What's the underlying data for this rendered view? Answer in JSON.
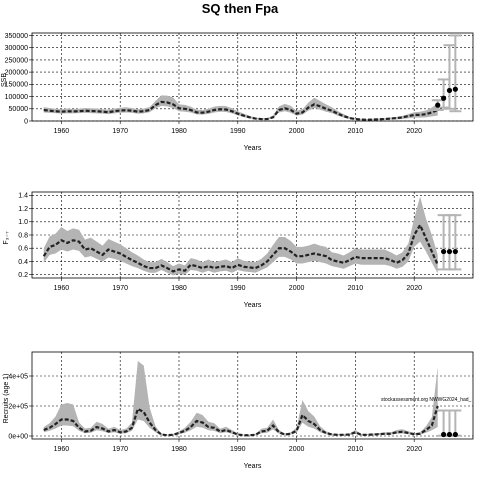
{
  "figure": {
    "title": "SQ then Fpa"
  },
  "chart_data": [
    {
      "type": "line",
      "panel": "ssb",
      "title": "",
      "xlabel": "Years",
      "ylabel": "SSB",
      "xlim": [
        1955,
        2030
      ],
      "ylim": [
        0,
        360000
      ],
      "grid": true,
      "x_ticks": [
        1960,
        1970,
        1980,
        1990,
        2000,
        2010,
        2020
      ],
      "x_tick_labels": [
        "1960",
        "1970",
        "1980",
        "1990",
        "2000",
        "2010",
        "2020"
      ],
      "y_ticks": [
        0,
        50000,
        100000,
        150000,
        200000,
        250000,
        300000,
        350000
      ],
      "y_tick_labels": [
        "0",
        "50000",
        "100000",
        "150000",
        "200000",
        "250000",
        "300000",
        "350000"
      ],
      "series": [
        {
          "role": "estimate",
          "x": [
            1957,
            1958,
            1959,
            1960,
            1961,
            1962,
            1963,
            1964,
            1965,
            1966,
            1967,
            1968,
            1969,
            1970,
            1971,
            1972,
            1973,
            1974,
            1975,
            1976,
            1977,
            1978,
            1979,
            1980,
            1981,
            1982,
            1983,
            1984,
            1985,
            1986,
            1987,
            1988,
            1989,
            1990,
            1991,
            1992,
            1993,
            1994,
            1995,
            1996,
            1997,
            1998,
            1999,
            2000,
            2001,
            2002,
            2003,
            2004,
            2005,
            2006,
            2007,
            2008,
            2009,
            2010,
            2011,
            2012,
            2013,
            2014,
            2015,
            2016,
            2017,
            2018,
            2019,
            2020,
            2021,
            2022,
            2023,
            2024
          ],
          "values": [
            45000,
            42000,
            40000,
            38000,
            40000,
            39000,
            40000,
            42000,
            41000,
            40000,
            38000,
            36000,
            40000,
            43000,
            44000,
            42000,
            38000,
            40000,
            45000,
            65000,
            78000,
            76000,
            68000,
            52000,
            50000,
            45000,
            35000,
            34000,
            38000,
            45000,
            48000,
            47000,
            40000,
            30000,
            22000,
            15000,
            10000,
            8000,
            8000,
            15000,
            45000,
            52000,
            45000,
            30000,
            35000,
            55000,
            68000,
            60000,
            50000,
            42000,
            30000,
            20000,
            12000,
            8000,
            6000,
            5000,
            6000,
            7000,
            8000,
            10000,
            12000,
            15000,
            20000,
            25000,
            25000,
            28000,
            35000,
            45000
          ],
          "lower": [
            35000,
            33000,
            32000,
            30000,
            31000,
            31000,
            32000,
            33000,
            32000,
            31000,
            30000,
            28000,
            31000,
            34000,
            35000,
            33000,
            30000,
            31000,
            36000,
            52000,
            62000,
            60000,
            53000,
            40000,
            38000,
            35000,
            27000,
            26000,
            29000,
            35000,
            38000,
            37000,
            31000,
            23000,
            16000,
            11000,
            7000,
            5500,
            5500,
            11000,
            35000,
            40000,
            34000,
            22000,
            26000,
            42000,
            53000,
            46000,
            38000,
            32000,
            22000,
            14000,
            8000,
            5500,
            4000,
            3000,
            3500,
            4000,
            4500,
            5500,
            6500,
            8000,
            11000,
            14000,
            14000,
            15000,
            19000,
            22000
          ],
          "upper": [
            57000,
            53000,
            50000,
            48000,
            51000,
            49000,
            50000,
            53000,
            52000,
            51000,
            48000,
            46000,
            51000,
            54000,
            56000,
            53000,
            48000,
            51000,
            57000,
            82000,
            105000,
            104000,
            96000,
            68000,
            66000,
            59000,
            46000,
            45000,
            50000,
            59000,
            62000,
            61000,
            52000,
            40000,
            30000,
            21000,
            14000,
            11000,
            11500,
            22000,
            60000,
            70000,
            62000,
            42000,
            48000,
            75000,
            95000,
            82000,
            68000,
            56000,
            41000,
            28000,
            17000,
            11500,
            9000,
            8000,
            9000,
            10000,
            11500,
            14000,
            17000,
            21000,
            28000,
            36000,
            38000,
            43000,
            55000,
            72000
          ]
        },
        {
          "role": "projection",
          "x": [
            2024,
            2025,
            2026,
            2027
          ],
          "values": [
            65000,
            93000,
            125000,
            130000
          ],
          "lower": [
            45000,
            55000,
            50000,
            40000
          ],
          "upper": [
            85000,
            170000,
            310000,
            350000
          ]
        }
      ]
    },
    {
      "type": "line",
      "panel": "fbar",
      "title": "",
      "xlabel": "Years",
      "ylabel": "F₃₋₇",
      "xlim": [
        1955,
        2030
      ],
      "ylim": [
        0.15,
        1.45
      ],
      "grid": true,
      "x_ticks": [
        1960,
        1970,
        1980,
        1990,
        2000,
        2010,
        2020
      ],
      "x_tick_labels": [
        "1960",
        "1970",
        "1980",
        "1990",
        "2000",
        "2010",
        "2020"
      ],
      "y_ticks": [
        0.2,
        0.4,
        0.6,
        0.8,
        1.0,
        1.2,
        1.4
      ],
      "y_tick_labels": [
        "0.2",
        "0.4",
        "0.6",
        "0.8",
        "1.0",
        "1.2",
        "1.4"
      ],
      "series": [
        {
          "role": "estimate",
          "x": [
            1957,
            1958,
            1959,
            1960,
            1961,
            1962,
            1963,
            1964,
            1965,
            1966,
            1967,
            1968,
            1969,
            1970,
            1971,
            1972,
            1973,
            1974,
            1975,
            1976,
            1977,
            1978,
            1979,
            1980,
            1981,
            1982,
            1983,
            1984,
            1985,
            1986,
            1987,
            1988,
            1989,
            1990,
            1991,
            1992,
            1993,
            1994,
            1995,
            1996,
            1997,
            1998,
            1999,
            2000,
            2001,
            2002,
            2003,
            2004,
            2005,
            2006,
            2007,
            2008,
            2009,
            2010,
            2011,
            2012,
            2013,
            2014,
            2015,
            2016,
            2017,
            2018,
            2019,
            2020,
            2021,
            2022,
            2023,
            2024
          ],
          "values": [
            0.48,
            0.62,
            0.65,
            0.72,
            0.68,
            0.72,
            0.7,
            0.58,
            0.6,
            0.55,
            0.5,
            0.58,
            0.55,
            0.52,
            0.47,
            0.42,
            0.38,
            0.33,
            0.3,
            0.3,
            0.34,
            0.3,
            0.25,
            0.28,
            0.26,
            0.35,
            0.33,
            0.3,
            0.33,
            0.3,
            0.32,
            0.33,
            0.3,
            0.35,
            0.32,
            0.31,
            0.3,
            0.34,
            0.4,
            0.5,
            0.6,
            0.6,
            0.55,
            0.48,
            0.48,
            0.5,
            0.52,
            0.5,
            0.48,
            0.42,
            0.4,
            0.38,
            0.42,
            0.47,
            0.45,
            0.45,
            0.45,
            0.45,
            0.45,
            0.42,
            0.38,
            0.42,
            0.52,
            0.8,
            0.95,
            0.75,
            0.55,
            0.35
          ],
          "lower": [
            0.38,
            0.5,
            0.52,
            0.58,
            0.55,
            0.58,
            0.56,
            0.46,
            0.48,
            0.44,
            0.4,
            0.46,
            0.44,
            0.41,
            0.37,
            0.33,
            0.3,
            0.26,
            0.23,
            0.23,
            0.27,
            0.23,
            0.19,
            0.21,
            0.2,
            0.27,
            0.26,
            0.23,
            0.26,
            0.23,
            0.25,
            0.26,
            0.23,
            0.27,
            0.25,
            0.24,
            0.23,
            0.27,
            0.31,
            0.39,
            0.47,
            0.47,
            0.43,
            0.37,
            0.37,
            0.39,
            0.41,
            0.39,
            0.37,
            0.33,
            0.31,
            0.29,
            0.33,
            0.37,
            0.35,
            0.35,
            0.35,
            0.35,
            0.35,
            0.33,
            0.29,
            0.32,
            0.4,
            0.62,
            0.7,
            0.55,
            0.38,
            0.22
          ],
          "upper": [
            0.6,
            0.78,
            0.82,
            0.92,
            0.86,
            0.9,
            0.88,
            0.73,
            0.76,
            0.7,
            0.64,
            0.74,
            0.7,
            0.66,
            0.6,
            0.54,
            0.49,
            0.43,
            0.39,
            0.39,
            0.44,
            0.39,
            0.33,
            0.37,
            0.34,
            0.45,
            0.43,
            0.39,
            0.43,
            0.39,
            0.41,
            0.43,
            0.39,
            0.45,
            0.41,
            0.4,
            0.39,
            0.44,
            0.52,
            0.65,
            0.77,
            0.77,
            0.71,
            0.62,
            0.62,
            0.64,
            0.67,
            0.64,
            0.62,
            0.54,
            0.52,
            0.49,
            0.54,
            0.6,
            0.58,
            0.58,
            0.58,
            0.58,
            0.58,
            0.54,
            0.49,
            0.54,
            0.67,
            1.05,
            1.38,
            1.05,
            0.8,
            0.5
          ]
        },
        {
          "role": "projection",
          "x": [
            2025,
            2026,
            2027
          ],
          "values": [
            0.55,
            0.55,
            0.55
          ],
          "lower": [
            0.28,
            0.28,
            0.28
          ],
          "upper": [
            1.1,
            1.1,
            1.1
          ]
        }
      ]
    },
    {
      "type": "line",
      "panel": "recruitment",
      "title": "",
      "xlabel": "Years",
      "ylabel": "Recruits (age 1)",
      "xlim": [
        1955,
        2030
      ],
      "ylim": [
        -20000,
        560000
      ],
      "grid": true,
      "x_ticks": [
        1960,
        1970,
        1980,
        1990,
        2000,
        2010,
        2020
      ],
      "x_tick_labels": [
        "1960",
        "1970",
        "1980",
        "1990",
        "2000",
        "2010",
        "2020"
      ],
      "y_ticks": [
        0,
        200000,
        400000
      ],
      "y_tick_labels": [
        "0e+00",
        "2e+05",
        "4e+05"
      ],
      "annotation": "stockassessment.org NWWG2024_had_",
      "series": [
        {
          "role": "estimate",
          "x": [
            1957,
            1958,
            1959,
            1960,
            1961,
            1962,
            1963,
            1964,
            1965,
            1966,
            1967,
            1968,
            1969,
            1970,
            1971,
            1972,
            1973,
            1974,
            1975,
            1976,
            1977,
            1978,
            1979,
            1980,
            1981,
            1982,
            1983,
            1984,
            1985,
            1986,
            1987,
            1988,
            1989,
            1990,
            1991,
            1992,
            1993,
            1994,
            1995,
            1996,
            1997,
            1998,
            1999,
            2000,
            2001,
            2002,
            2003,
            2004,
            2005,
            2006,
            2007,
            2008,
            2009,
            2010,
            2011,
            2012,
            2013,
            2014,
            2015,
            2016,
            2017,
            2018,
            2019,
            2020,
            2021,
            2022,
            2023,
            2024
          ],
          "values": [
            40000,
            55000,
            80000,
            110000,
            110000,
            100000,
            55000,
            30000,
            35000,
            60000,
            50000,
            30000,
            40000,
            25000,
            30000,
            55000,
            180000,
            160000,
            90000,
            40000,
            10000,
            5000,
            8000,
            20000,
            35000,
            60000,
            100000,
            90000,
            60000,
            55000,
            30000,
            40000,
            25000,
            10000,
            5000,
            5000,
            8000,
            30000,
            35000,
            70000,
            25000,
            10000,
            15000,
            35000,
            140000,
            100000,
            80000,
            40000,
            20000,
            10000,
            8000,
            8000,
            10000,
            25000,
            8000,
            8000,
            10000,
            12000,
            15000,
            15000,
            25000,
            28000,
            20000,
            12000,
            15000,
            40000,
            70000,
            200000
          ],
          "lower": [
            25000,
            35000,
            50000,
            70000,
            70000,
            65000,
            35000,
            18000,
            22000,
            38000,
            32000,
            19000,
            25000,
            15000,
            18000,
            35000,
            110000,
            100000,
            55000,
            25000,
            6000,
            3000,
            5000,
            12000,
            22000,
            38000,
            62000,
            56000,
            38000,
            34000,
            18000,
            25000,
            15000,
            6000,
            3000,
            3000,
            5000,
            18000,
            22000,
            44000,
            15000,
            6000,
            9000,
            22000,
            88000,
            62000,
            50000,
            25000,
            12000,
            6000,
            5000,
            5000,
            6000,
            15000,
            5000,
            5000,
            6000,
            7000,
            9000,
            9000,
            15000,
            17000,
            12000,
            7000,
            9000,
            22000,
            38000,
            60000
          ],
          "upper": [
            60000,
            85000,
            130000,
            210000,
            220000,
            210000,
            90000,
            50000,
            55000,
            95000,
            80000,
            48000,
            62000,
            40000,
            48000,
            90000,
            500000,
            470000,
            190000,
            65000,
            16000,
            8000,
            13000,
            32000,
            55000,
            95000,
            155000,
            140000,
            95000,
            85000,
            48000,
            62000,
            40000,
            16000,
            8000,
            8000,
            13000,
            48000,
            55000,
            110000,
            40000,
            16000,
            24000,
            55000,
            240000,
            165000,
            130000,
            65000,
            32000,
            16000,
            13000,
            13000,
            16000,
            40000,
            13000,
            13000,
            16000,
            19000,
            24000,
            24000,
            40000,
            45000,
            32000,
            19000,
            24000,
            65000,
            125000,
            460000
          ]
        },
        {
          "role": "projection",
          "x": [
            2025,
            2026,
            2027
          ],
          "values": [
            10000,
            10000,
            10000
          ],
          "lower": [
            2000,
            2000,
            2000
          ],
          "upper": [
            170000,
            170000,
            170000
          ]
        }
      ]
    }
  ]
}
